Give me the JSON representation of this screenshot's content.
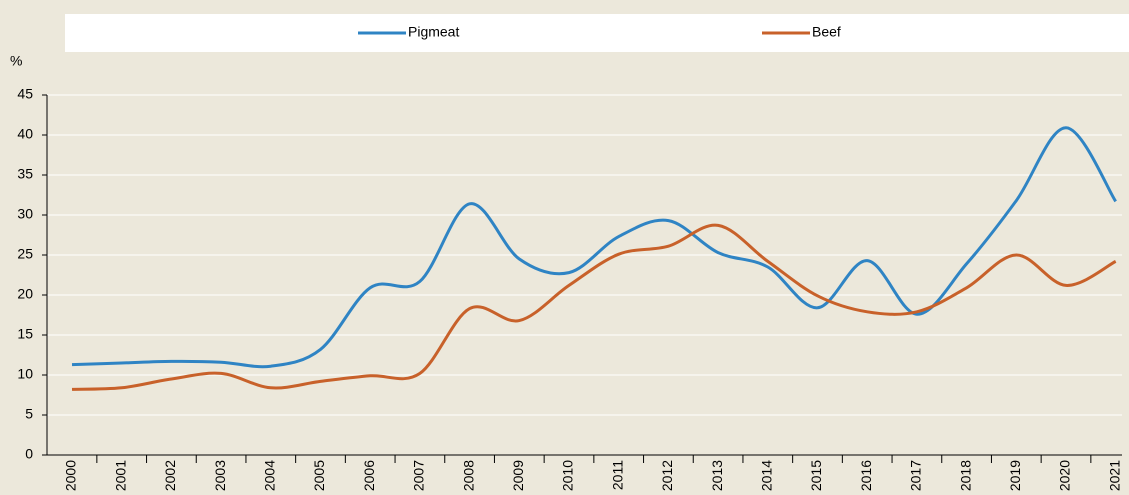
{
  "chart_data": {
    "type": "line",
    "y_axis_label": "%",
    "categories": [
      "2000",
      "2001",
      "2002",
      "2003",
      "2004",
      "2005",
      "2006",
      "2007",
      "2008",
      "2009",
      "2010",
      "2011",
      "2012",
      "2013",
      "2014",
      "2015",
      "2016",
      "2017",
      "2018",
      "2019",
      "2020",
      "2021"
    ],
    "series": [
      {
        "name": "Pigmeat",
        "color": "#2f84c4",
        "values": [
          11.3,
          11.5,
          11.7,
          11.6,
          11.1,
          13.2,
          20.9,
          21.7,
          31.4,
          24.5,
          22.8,
          27.3,
          29.3,
          25.3,
          23.5,
          18.4,
          24.3,
          17.6,
          23.9,
          31.8,
          40.9,
          31.7
        ]
      },
      {
        "name": "Beef",
        "color": "#c8612a",
        "values": [
          8.2,
          8.4,
          9.5,
          10.2,
          8.4,
          9.2,
          9.9,
          10.2,
          18.3,
          16.8,
          21.2,
          25.1,
          26.1,
          28.7,
          24.2,
          19.9,
          17.9,
          17.9,
          20.9,
          25.0,
          21.2,
          24.2
        ]
      }
    ],
    "ylim": [
      0,
      45
    ],
    "yticks": [
      0,
      5,
      10,
      15,
      20,
      25,
      30,
      35,
      40,
      45
    ],
    "grid": true,
    "legend": "top"
  }
}
